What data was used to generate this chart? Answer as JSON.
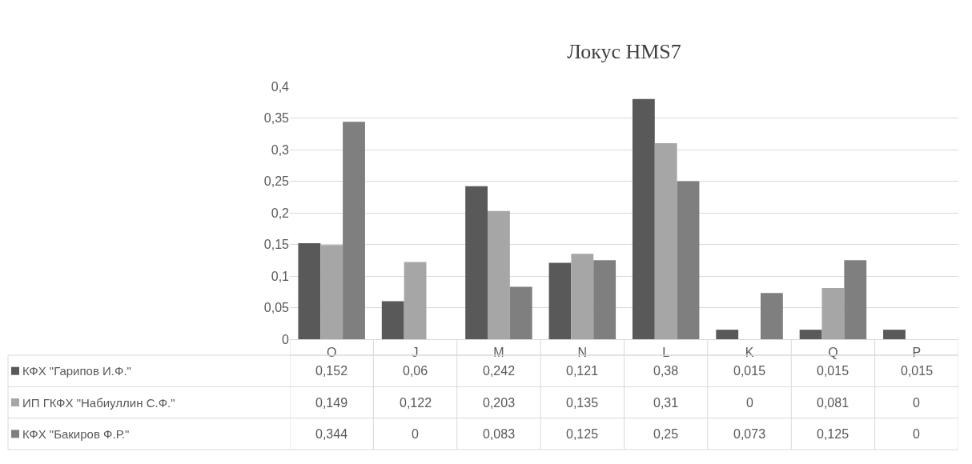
{
  "chart_data": {
    "type": "bar",
    "title": "Локус HMS7",
    "categories": [
      "O",
      "J",
      "M",
      "N",
      "L",
      "K",
      "Q",
      "P"
    ],
    "series": [
      {
        "name": "КФХ \"Гарипов И.Ф.\"",
        "color": "#595959",
        "values": [
          0.152,
          0.06,
          0.242,
          0.121,
          0.38,
          0.015,
          0.015,
          0.015
        ],
        "value_labels": [
          "0,152",
          "0,06",
          "0,242",
          "0,121",
          "0,38",
          "0,015",
          "0,015",
          "0,015"
        ]
      },
      {
        "name": "ИП ГКФХ \"Набиуллин С.Ф.\"",
        "color": "#a6a6a6",
        "values": [
          0.149,
          0.122,
          0.203,
          0.135,
          0.31,
          0,
          0.081,
          0
        ],
        "value_labels": [
          "0,149",
          "0,122",
          "0,203",
          "0,135",
          "0,31",
          "0",
          "0,081",
          "0"
        ]
      },
      {
        "name": "КФХ \"Бакиров Ф.Р.\"",
        "color": "#7f7f7f",
        "values": [
          0.344,
          0,
          0.083,
          0.125,
          0.25,
          0.073,
          0.125,
          0
        ],
        "value_labels": [
          "0,344",
          "0",
          "0,083",
          "0,125",
          "0,25",
          "0,073",
          "0,125",
          "0"
        ]
      }
    ],
    "ylim": [
      0,
      0.4
    ],
    "yticks": [
      {
        "value": 0,
        "label": "0"
      },
      {
        "value": 0.05,
        "label": "0,05"
      },
      {
        "value": 0.1,
        "label": "0,1"
      },
      {
        "value": 0.15,
        "label": "0,15"
      },
      {
        "value": 0.2,
        "label": "0,2"
      },
      {
        "value": 0.25,
        "label": "0,25"
      },
      {
        "value": 0.3,
        "label": "0,3"
      },
      {
        "value": 0.35,
        "label": "0,35"
      },
      {
        "value": 0.4,
        "label": "0,4"
      }
    ],
    "grid": "y",
    "legend": "bottom"
  }
}
